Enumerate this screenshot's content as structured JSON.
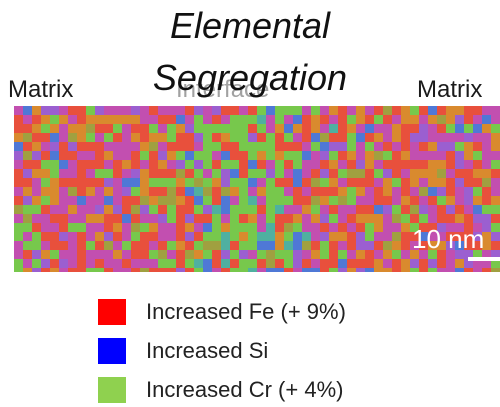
{
  "figure": {
    "title_line1": "Elemental",
    "title_line2": "Segregation",
    "region_left": "Matrix",
    "region_center": "Interface",
    "region_right": "Matrix",
    "scale_bar_label": "10 nm"
  },
  "legend": {
    "items": [
      {
        "label": "Increased Fe (+ 9%)",
        "color": "#ff0000"
      },
      {
        "label": "Increased Si",
        "color": "#0000ff"
      },
      {
        "label": "Increased Cr (+ 4%)",
        "color": "#8fd14f"
      }
    ]
  },
  "map_colors": {
    "red": "#e8503c",
    "magenta": "#c24fb0",
    "orange": "#d98a2e",
    "green": "#77c84c",
    "blue": "#4f78d6",
    "teal": "#4fb0a0",
    "purple": "#9b5fd0",
    "olive": "#a0a040"
  }
}
